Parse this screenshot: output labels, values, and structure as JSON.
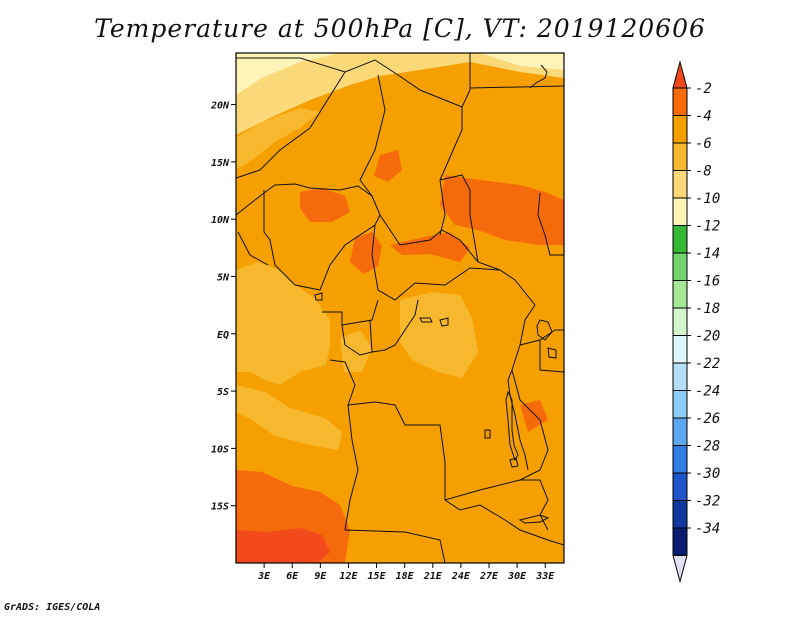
{
  "chart_data": {
    "type": "heatmap",
    "title": "Temperature at 500hPa [C], VT: 2019120606",
    "variable": "Temperature at 500hPa",
    "units": "C",
    "valid_time": "2019120606",
    "x_axis": {
      "label": "",
      "range_lon": [
        0,
        35
      ],
      "ticks": [
        {
          "value": 3,
          "label": "3E"
        },
        {
          "value": 6,
          "label": "6E"
        },
        {
          "value": 9,
          "label": "9E"
        },
        {
          "value": 12,
          "label": "12E"
        },
        {
          "value": 15,
          "label": "15E"
        },
        {
          "value": 18,
          "label": "18E"
        },
        {
          "value": 21,
          "label": "21E"
        },
        {
          "value": 24,
          "label": "24E"
        },
        {
          "value": 27,
          "label": "27E"
        },
        {
          "value": 30,
          "label": "30E"
        },
        {
          "value": 33,
          "label": "33E"
        }
      ]
    },
    "y_axis": {
      "label": "",
      "range_lat": [
        -20,
        24.5
      ],
      "ticks": [
        {
          "value": 20,
          "label": "20N"
        },
        {
          "value": 15,
          "label": "15N"
        },
        {
          "value": 10,
          "label": "10N"
        },
        {
          "value": 5,
          "label": "5N"
        },
        {
          "value": 0,
          "label": "EQ"
        },
        {
          "value": -5,
          "label": "5S"
        },
        {
          "value": -10,
          "label": "10S"
        },
        {
          "value": -15,
          "label": "15S"
        }
      ]
    },
    "colorbar": {
      "labels": [
        "-2",
        "-4",
        "-6",
        "-8",
        "-10",
        "-12",
        "-14",
        "-16",
        "-18",
        "-20",
        "-22",
        "-24",
        "-26",
        "-28",
        "-30",
        "-32",
        "-34"
      ],
      "colors": [
        "#f24a1a",
        "#f56a0a",
        "#f5a000",
        "#f8b82d",
        "#fbd978",
        "#fff3b8",
        "#35b835",
        "#72d46e",
        "#a4e896",
        "#d2f6c8",
        "#e0f6ff",
        "#b4def8",
        "#8ccbf8",
        "#5ca9f2",
        "#347ce6",
        "#1e55c8",
        "#0f38a0",
        "#0a1c6e",
        "#e0e0f4"
      ]
    },
    "fields": [
      {
        "name": "background",
        "value": -5,
        "color": "#f5a000"
      },
      {
        "name": "sahara-north",
        "value": -9,
        "color": "#fbd978"
      },
      {
        "name": "north-edge",
        "value": -10,
        "color": "#fff3b8"
      },
      {
        "name": "nw-band",
        "value": -7,
        "color": "#f8b82d"
      },
      {
        "name": "gulf-of-guinea",
        "value": -7,
        "color": "#f8b82d"
      },
      {
        "name": "atlantic-southwest",
        "value": -7,
        "color": "#f8b82d"
      },
      {
        "name": "congo-basin",
        "value": -7,
        "color": "#f8b82d"
      },
      {
        "name": "sudan-warm",
        "value": -3,
        "color": "#f56a0a"
      },
      {
        "name": "nigeria-warm",
        "value": -3,
        "color": "#f56a0a"
      },
      {
        "name": "cameroon-warm",
        "value": -3,
        "color": "#f56a0a"
      },
      {
        "name": "car-warm",
        "value": -3,
        "color": "#f56a0a"
      },
      {
        "name": "southwest-warm",
        "value": -3,
        "color": "#f56a0a"
      },
      {
        "name": "southwest-core",
        "value": -2,
        "color": "#f24a1a"
      }
    ]
  },
  "footer": {
    "credit": "GrADS: IGES/COLA"
  }
}
